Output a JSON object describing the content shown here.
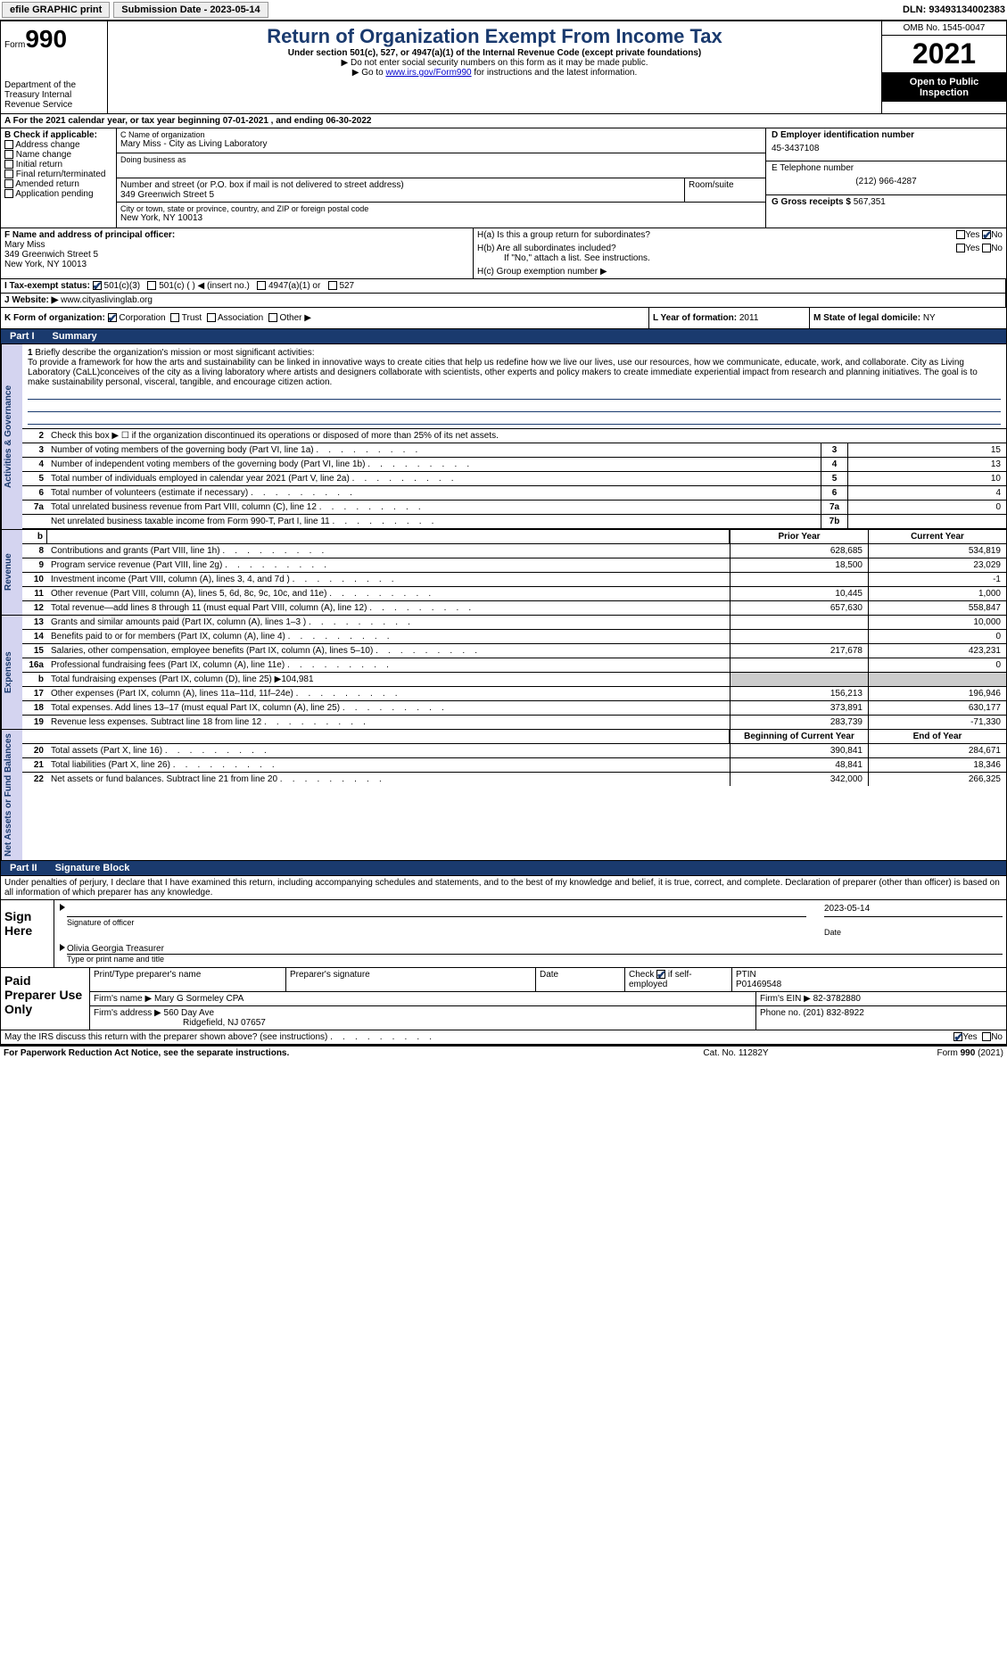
{
  "topbar": {
    "efile": "efile GRAPHIC print",
    "submission": "Submission Date - 2023-05-14",
    "dln": "DLN: 93493134002383"
  },
  "header": {
    "form_label": "Form",
    "form_no": "990",
    "dept": "Department of the Treasury\nInternal Revenue Service",
    "title": "Return of Organization Exempt From Income Tax",
    "subtitle": "Under section 501(c), 527, or 4947(a)(1) of the Internal Revenue Code (except private foundations)",
    "line1": "▶ Do not enter social security numbers on this form as it may be made public.",
    "line2_pre": "▶ Go to ",
    "line2_link": "www.irs.gov/Form990",
    "line2_post": " for instructions and the latest information.",
    "omb": "OMB No. 1545-0047",
    "year": "2021",
    "inspection": "Open to Public Inspection"
  },
  "sectionA": "A For the 2021 calendar year, or tax year beginning 07-01-2021    , and ending 06-30-2022",
  "colB": {
    "title": "B Check if applicable:",
    "items": [
      "Address change",
      "Name change",
      "Initial return",
      "Final return/terminated",
      "Amended return",
      "Application pending"
    ]
  },
  "colC": {
    "name_lbl": "C Name of organization",
    "name": "Mary Miss - City as Living Laboratory",
    "dba_lbl": "Doing business as",
    "dba": "",
    "street_lbl": "Number and street (or P.O. box if mail is not delivered to street address)",
    "street": "349 Greenwich Street 5",
    "suite_lbl": "Room/suite",
    "city_lbl": "City or town, state or province, country, and ZIP or foreign postal code",
    "city": "New York, NY  10013",
    "officer_lbl": "F Name and address of principal officer:",
    "officer_name": "Mary Miss",
    "officer_addr1": "349 Greenwich Street 5",
    "officer_addr2": "New York, NY  10013"
  },
  "colD": {
    "ein_lbl": "D Employer identification number",
    "ein": "45-3437108",
    "tel_lbl": "E Telephone number",
    "tel": "(212) 966-4287",
    "gross_lbl": "G Gross receipts $",
    "gross": "567,351"
  },
  "sectionH": {
    "ha": "H(a)  Is this a group return for subordinates?",
    "hb": "H(b)  Are all subordinates included?",
    "hb_note": "If \"No,\" attach a list. See instructions.",
    "hc": "H(c)  Group exemption number ▶"
  },
  "rowI": {
    "label": "I   Tax-exempt status:",
    "opts": [
      "501(c)(3)",
      "501(c) (  ) ◀ (insert no.)",
      "4947(a)(1) or",
      "527"
    ]
  },
  "rowJ": {
    "label": "J   Website: ▶",
    "value": "www.cityaslivinglab.org"
  },
  "rowK": {
    "label": "K Form of organization:",
    "opts": [
      "Corporation",
      "Trust",
      "Association",
      "Other ▶"
    ],
    "l_lbl": "L Year of formation:",
    "l_val": "2011",
    "m_lbl": "M State of legal domicile:",
    "m_val": "NY"
  },
  "part1": {
    "part": "Part I",
    "title": "Summary"
  },
  "mission": {
    "num": "1",
    "lead": "Briefly describe the organization's mission or most significant activities:",
    "text": "To provide a framework for how the arts and sustainability can be linked in innovative ways to create cities that help us redefine how we live our lives, use our resources, how we communicate, educate, work, and collaborate. City as Living Laboratory (CaLL)conceives of the city as a living laboratory where artists and designers collaborate with scientists, other experts and policy makers to create immediate experiential impact from research and planning initiatives. The goal is to make sustainability personal, visceral, tangible, and encourage citizen action."
  },
  "gov_rows": [
    {
      "num": "2",
      "desc": "Check this box ▶ ☐  if the organization discontinued its operations or disposed of more than 25% of its net assets.",
      "box": "",
      "val": ""
    },
    {
      "num": "3",
      "desc": "Number of voting members of the governing body (Part VI, line 1a)",
      "box": "3",
      "val": "15"
    },
    {
      "num": "4",
      "desc": "Number of independent voting members of the governing body (Part VI, line 1b)",
      "box": "4",
      "val": "13"
    },
    {
      "num": "5",
      "desc": "Total number of individuals employed in calendar year 2021 (Part V, line 2a)",
      "box": "5",
      "val": "10"
    },
    {
      "num": "6",
      "desc": "Total number of volunteers (estimate if necessary)",
      "box": "6",
      "val": "4"
    },
    {
      "num": "7a",
      "desc": "Total unrelated business revenue from Part VIII, column (C), line 12",
      "box": "7a",
      "val": "0"
    },
    {
      "num": "",
      "desc": "Net unrelated business taxable income from Form 990-T, Part I, line 11",
      "box": "7b",
      "val": ""
    }
  ],
  "vtabs": {
    "gov": "Activities & Governance",
    "rev": "Revenue",
    "exp": "Expenses",
    "net": "Net Assets or Fund Balances"
  },
  "fin_headers": {
    "b": "b",
    "prior": "Prior Year",
    "current": "Current Year"
  },
  "revenue": [
    {
      "num": "8",
      "desc": "Contributions and grants (Part VIII, line 1h)",
      "prior": "628,685",
      "current": "534,819"
    },
    {
      "num": "9",
      "desc": "Program service revenue (Part VIII, line 2g)",
      "prior": "18,500",
      "current": "23,029"
    },
    {
      "num": "10",
      "desc": "Investment income (Part VIII, column (A), lines 3, 4, and 7d )",
      "prior": "",
      "current": "-1"
    },
    {
      "num": "11",
      "desc": "Other revenue (Part VIII, column (A), lines 5, 6d, 8c, 9c, 10c, and 11e)",
      "prior": "10,445",
      "current": "1,000"
    },
    {
      "num": "12",
      "desc": "Total revenue—add lines 8 through 11 (must equal Part VIII, column (A), line 12)",
      "prior": "657,630",
      "current": "558,847"
    }
  ],
  "expenses": [
    {
      "num": "13",
      "desc": "Grants and similar amounts paid (Part IX, column (A), lines 1–3 )",
      "prior": "",
      "current": "10,000"
    },
    {
      "num": "14",
      "desc": "Benefits paid to or for members (Part IX, column (A), line 4)",
      "prior": "",
      "current": "0"
    },
    {
      "num": "15",
      "desc": "Salaries, other compensation, employee benefits (Part IX, column (A), lines 5–10)",
      "prior": "217,678",
      "current": "423,231"
    },
    {
      "num": "16a",
      "desc": "Professional fundraising fees (Part IX, column (A), line 11e)",
      "prior": "",
      "current": "0"
    },
    {
      "num": "b",
      "desc": "Total fundraising expenses (Part IX, column (D), line 25) ▶104,981",
      "prior": "SHADE",
      "current": "SHADE"
    },
    {
      "num": "17",
      "desc": "Other expenses (Part IX, column (A), lines 11a–11d, 11f–24e)",
      "prior": "156,213",
      "current": "196,946"
    },
    {
      "num": "18",
      "desc": "Total expenses. Add lines 13–17 (must equal Part IX, column (A), line 25)",
      "prior": "373,891",
      "current": "630,177"
    },
    {
      "num": "19",
      "desc": "Revenue less expenses. Subtract line 18 from line 12",
      "prior": "283,739",
      "current": "-71,330"
    }
  ],
  "net_headers": {
    "prior": "Beginning of Current Year",
    "current": "End of Year"
  },
  "netassets": [
    {
      "num": "20",
      "desc": "Total assets (Part X, line 16)",
      "prior": "390,841",
      "current": "284,671"
    },
    {
      "num": "21",
      "desc": "Total liabilities (Part X, line 26)",
      "prior": "48,841",
      "current": "18,346"
    },
    {
      "num": "22",
      "desc": "Net assets or fund balances. Subtract line 21 from line 20",
      "prior": "342,000",
      "current": "266,325"
    }
  ],
  "part2": {
    "part": "Part II",
    "title": "Signature Block"
  },
  "sig_intro": "Under penalties of perjury, I declare that I have examined this return, including accompanying schedules and statements, and to the best of my knowledge and belief, it is true, correct, and complete. Declaration of preparer (other than officer) is based on all information of which preparer has any knowledge.",
  "sign": {
    "label": "Sign Here",
    "sig_lbl": "Signature of officer",
    "date_lbl": "Date",
    "date_val": "2023-05-14",
    "name": "Olivia Georgia  Treasurer",
    "name_lbl": "Type or print name and title"
  },
  "paid": {
    "label": "Paid Preparer Use Only",
    "h1": "Print/Type preparer's name",
    "h2": "Preparer's signature",
    "h3": "Date",
    "h4_pre": "Check",
    "h4_post": "if self-employed",
    "h5": "PTIN",
    "ptin": "P01469548",
    "firm_lbl": "Firm's name    ▶",
    "firm": "Mary G Sormeley CPA",
    "ein_lbl": "Firm's EIN ▶",
    "ein": "82-3782880",
    "addr_lbl": "Firm's address ▶",
    "addr1": "560 Day Ave",
    "addr2": "Ridgefield, NJ  07657",
    "phone_lbl": "Phone no.",
    "phone": "(201) 832-8922"
  },
  "discuss": "May the IRS discuss this return with the preparer shown above? (see instructions)",
  "footer": {
    "left": "For Paperwork Reduction Act Notice, see the separate instructions.",
    "mid": "Cat. No. 11282Y",
    "right_pre": "Form ",
    "right_form": "990",
    "right_post": " (2021)"
  },
  "yesno": {
    "yes": "Yes",
    "no": "No"
  }
}
